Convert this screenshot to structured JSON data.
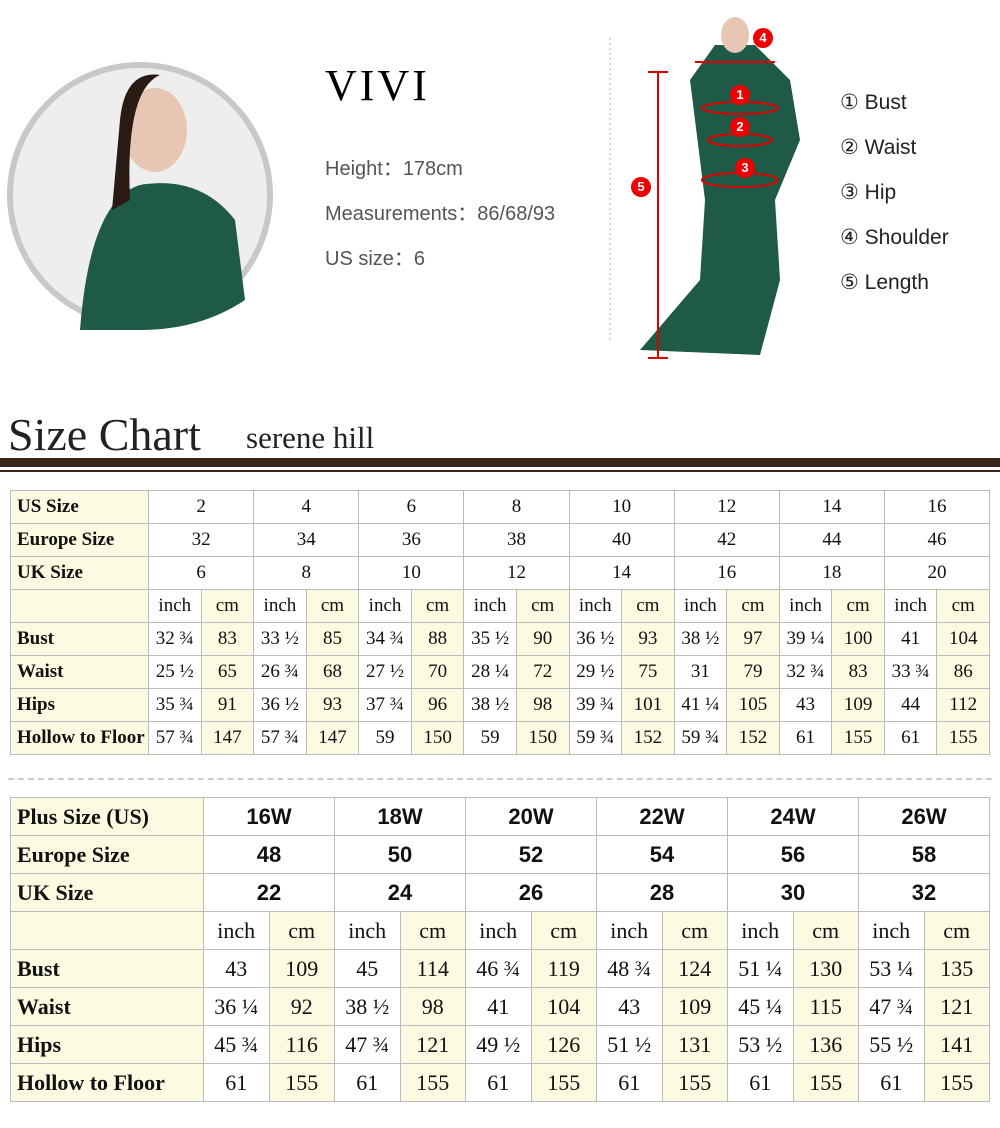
{
  "model": {
    "name": "VIVI",
    "height_label": "Height：",
    "height": "178cm",
    "measurements_label": "Measurements：",
    "measurements": "86/68/93",
    "us_size_label": "US size：",
    "us_size": "6"
  },
  "legend": [
    "① Bust",
    "② Waist",
    "③ Hip",
    "④ Shoulder",
    "⑤ Length"
  ],
  "markers": [
    "1",
    "2",
    "3",
    "4",
    "5"
  ],
  "heading": {
    "title": "Size Chart",
    "brand": "serene hill"
  },
  "table1": {
    "header_rows": [
      {
        "label": "US Size",
        "values": [
          "2",
          "4",
          "6",
          "8",
          "10",
          "12",
          "14",
          "16"
        ]
      },
      {
        "label": "Europe Size",
        "values": [
          "32",
          "34",
          "36",
          "38",
          "40",
          "42",
          "44",
          "46"
        ]
      },
      {
        "label": "UK Size",
        "values": [
          "6",
          "8",
          "10",
          "12",
          "14",
          "16",
          "18",
          "20"
        ]
      }
    ],
    "units": [
      "inch",
      "cm"
    ],
    "rows": [
      {
        "label": "Bust",
        "values": [
          "32 ¾",
          "83",
          "33 ½",
          "85",
          "34 ¾",
          "88",
          "35 ½",
          "90",
          "36 ½",
          "93",
          "38 ½",
          "97",
          "39 ¼",
          "100",
          "41",
          "104"
        ]
      },
      {
        "label": "Waist",
        "values": [
          "25 ½",
          "65",
          "26 ¾",
          "68",
          "27 ½",
          "70",
          "28 ¼",
          "72",
          "29 ½",
          "75",
          "31",
          "79",
          "32 ¾",
          "83",
          "33 ¾",
          "86"
        ]
      },
      {
        "label": "Hips",
        "values": [
          "35 ¾",
          "91",
          "36 ½",
          "93",
          "37 ¾",
          "96",
          "38 ½",
          "98",
          "39 ¾",
          "101",
          "41 ¼",
          "105",
          "43",
          "109",
          "44",
          "112"
        ]
      },
      {
        "label": "Hollow to Floor",
        "values": [
          "57 ¾",
          "147",
          "57 ¾",
          "147",
          "59",
          "150",
          "59",
          "150",
          "59 ¾",
          "152",
          "59 ¾",
          "152",
          "61",
          "155",
          "61",
          "155"
        ]
      }
    ]
  },
  "table2": {
    "header_rows": [
      {
        "label": "Plus Size (US)",
        "values": [
          "16W",
          "18W",
          "20W",
          "22W",
          "24W",
          "26W"
        ]
      },
      {
        "label": "Europe Size",
        "values": [
          "48",
          "50",
          "52",
          "54",
          "56",
          "58"
        ]
      },
      {
        "label": "UK Size",
        "values": [
          "22",
          "24",
          "26",
          "28",
          "30",
          "32"
        ]
      }
    ],
    "units": [
      "inch",
      "cm"
    ],
    "rows": [
      {
        "label": "Bust",
        "values": [
          "43",
          "109",
          "45",
          "114",
          "46 ¾",
          "119",
          "48 ¾",
          "124",
          "51 ¼",
          "130",
          "53 ¼",
          "135"
        ]
      },
      {
        "label": "Waist",
        "values": [
          "36 ¼",
          "92",
          "38 ½",
          "98",
          "41",
          "104",
          "43",
          "109",
          "45 ¼",
          "115",
          "47 ¾",
          "121"
        ]
      },
      {
        "label": "Hips",
        "values": [
          "45 ¾",
          "116",
          "47 ¾",
          "121",
          "49 ½",
          "126",
          "51 ½",
          "131",
          "53 ½",
          "136",
          "55 ½",
          "141"
        ]
      },
      {
        "label": "Hollow to Floor",
        "values": [
          "61",
          "155",
          "61",
          "155",
          "61",
          "155",
          "61",
          "155",
          "61",
          "155",
          "61",
          "155"
        ]
      }
    ]
  }
}
